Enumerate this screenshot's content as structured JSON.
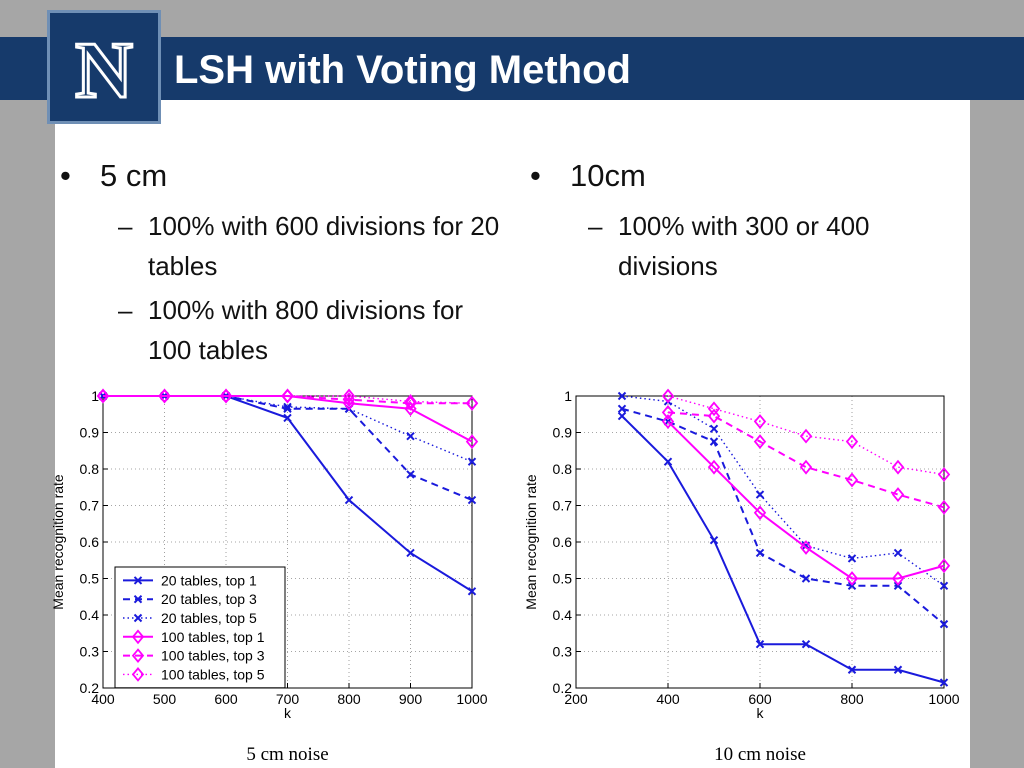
{
  "title": "LSH with Voting Method",
  "logo_letter": "N",
  "columns": [
    {
      "heading": "5 cm",
      "items": [
        "100% with 600 divisions for 20 tables",
        "100% with 800 divisions for 100 tables"
      ]
    },
    {
      "heading": "10cm",
      "items": [
        "100% with 300 or 400 divisions"
      ]
    }
  ],
  "bullet_glyph": "•",
  "dash_glyph": "–",
  "colors": {
    "title_bar": "#163a6b",
    "blue_series": "#1a1adc",
    "magenta_series": "#ff00ff"
  },
  "chart_data": [
    {
      "type": "line",
      "caption": "5 cm noise",
      "xlabel": "k",
      "ylabel": "Mean recognition rate",
      "xlim": [
        400,
        1000
      ],
      "ylim": [
        0.2,
        1
      ],
      "xticks": [
        400,
        500,
        600,
        700,
        800,
        900,
        1000
      ],
      "yticks": [
        0.2,
        0.3,
        0.4,
        0.5,
        0.6,
        0.7,
        0.8,
        0.9,
        1
      ],
      "grid": true,
      "legend_position": "bottom-left",
      "series": [
        {
          "name": "20 tables, top 1",
          "color": "#1a1adc",
          "style": "solid",
          "marker": "x",
          "x": [
            400,
            500,
            600,
            700,
            800,
            900,
            1000
          ],
          "values": [
            1,
            1,
            1,
            0.94,
            0.715,
            0.57,
            0.465
          ]
        },
        {
          "name": "20 tables, top 3",
          "color": "#1a1adc",
          "style": "dashed",
          "marker": "x",
          "x": [
            400,
            500,
            600,
            700,
            800,
            900,
            1000
          ],
          "values": [
            1,
            1,
            1,
            0.965,
            0.965,
            0.785,
            0.715
          ]
        },
        {
          "name": "20 tables, top 5",
          "color": "#1a1adc",
          "style": "dotted",
          "marker": "x",
          "x": [
            400,
            500,
            600,
            700,
            800,
            900,
            1000
          ],
          "values": [
            1,
            1,
            1,
            0.97,
            0.965,
            0.89,
            0.82
          ]
        },
        {
          "name": "100 tables, top 1",
          "color": "#ff00ff",
          "style": "solid",
          "marker": "diamond",
          "x": [
            400,
            500,
            600,
            700,
            800,
            900,
            1000
          ],
          "values": [
            1,
            1,
            1,
            1,
            0.98,
            0.965,
            0.875
          ]
        },
        {
          "name": "100 tables, top 3",
          "color": "#ff00ff",
          "style": "dashed",
          "marker": "diamond",
          "x": [
            400,
            500,
            600,
            700,
            800,
            900,
            1000
          ],
          "values": [
            1,
            1,
            1,
            1,
            0.99,
            0.98,
            0.98
          ]
        },
        {
          "name": "100 tables, top 5",
          "color": "#ff00ff",
          "style": "dotted",
          "marker": "diamond",
          "x": [
            400,
            500,
            600,
            700,
            800,
            900,
            1000
          ],
          "values": [
            1,
            1,
            1,
            1,
            1,
            0.985,
            0.98
          ]
        }
      ]
    },
    {
      "type": "line",
      "caption": "10 cm noise",
      "xlabel": "k",
      "ylabel": "Mean recognition rate",
      "xlim": [
        200,
        1000
      ],
      "ylim": [
        0.2,
        1
      ],
      "xticks": [
        200,
        400,
        600,
        800,
        1000
      ],
      "yticks": [
        0.2,
        0.3,
        0.4,
        0.5,
        0.6,
        0.7,
        0.8,
        0.9,
        1
      ],
      "grid": true,
      "legend_position": "",
      "series": [
        {
          "name": "20 tables, top 1",
          "color": "#1a1adc",
          "style": "solid",
          "marker": "x",
          "x": [
            300,
            400,
            500,
            600,
            700,
            800,
            900,
            1000
          ],
          "values": [
            0.945,
            0.82,
            0.605,
            0.32,
            0.32,
            0.25,
            0.25,
            0.215
          ]
        },
        {
          "name": "20 tables, top 3",
          "color": "#1a1adc",
          "style": "dashed",
          "marker": "x",
          "x": [
            300,
            400,
            500,
            600,
            700,
            800,
            900,
            1000
          ],
          "values": [
            0.965,
            0.93,
            0.875,
            0.57,
            0.5,
            0.48,
            0.48,
            0.375
          ]
        },
        {
          "name": "20 tables, top 5",
          "color": "#1a1adc",
          "style": "dotted",
          "marker": "x",
          "x": [
            300,
            400,
            500,
            600,
            700,
            800,
            900,
            1000
          ],
          "values": [
            1,
            0.985,
            0.91,
            0.73,
            0.59,
            0.555,
            0.57,
            0.48
          ]
        },
        {
          "name": "100 tables, top 1",
          "color": "#ff00ff",
          "style": "solid",
          "marker": "diamond",
          "x": [
            400,
            500,
            600,
            700,
            800,
            900,
            1000
          ],
          "values": [
            0.93,
            0.805,
            0.68,
            0.585,
            0.5,
            0.5,
            0.535
          ]
        },
        {
          "name": "100 tables, top 3",
          "color": "#ff00ff",
          "style": "dashed",
          "marker": "diamond",
          "x": [
            400,
            500,
            600,
            700,
            800,
            900,
            1000
          ],
          "values": [
            0.955,
            0.945,
            0.875,
            0.805,
            0.77,
            0.73,
            0.695
          ]
        },
        {
          "name": "100 tables, top 5",
          "color": "#ff00ff",
          "style": "dotted",
          "marker": "diamond",
          "x": [
            400,
            500,
            600,
            700,
            800,
            900,
            1000
          ],
          "values": [
            1,
            0.965,
            0.93,
            0.89,
            0.875,
            0.805,
            0.785
          ]
        }
      ]
    }
  ]
}
